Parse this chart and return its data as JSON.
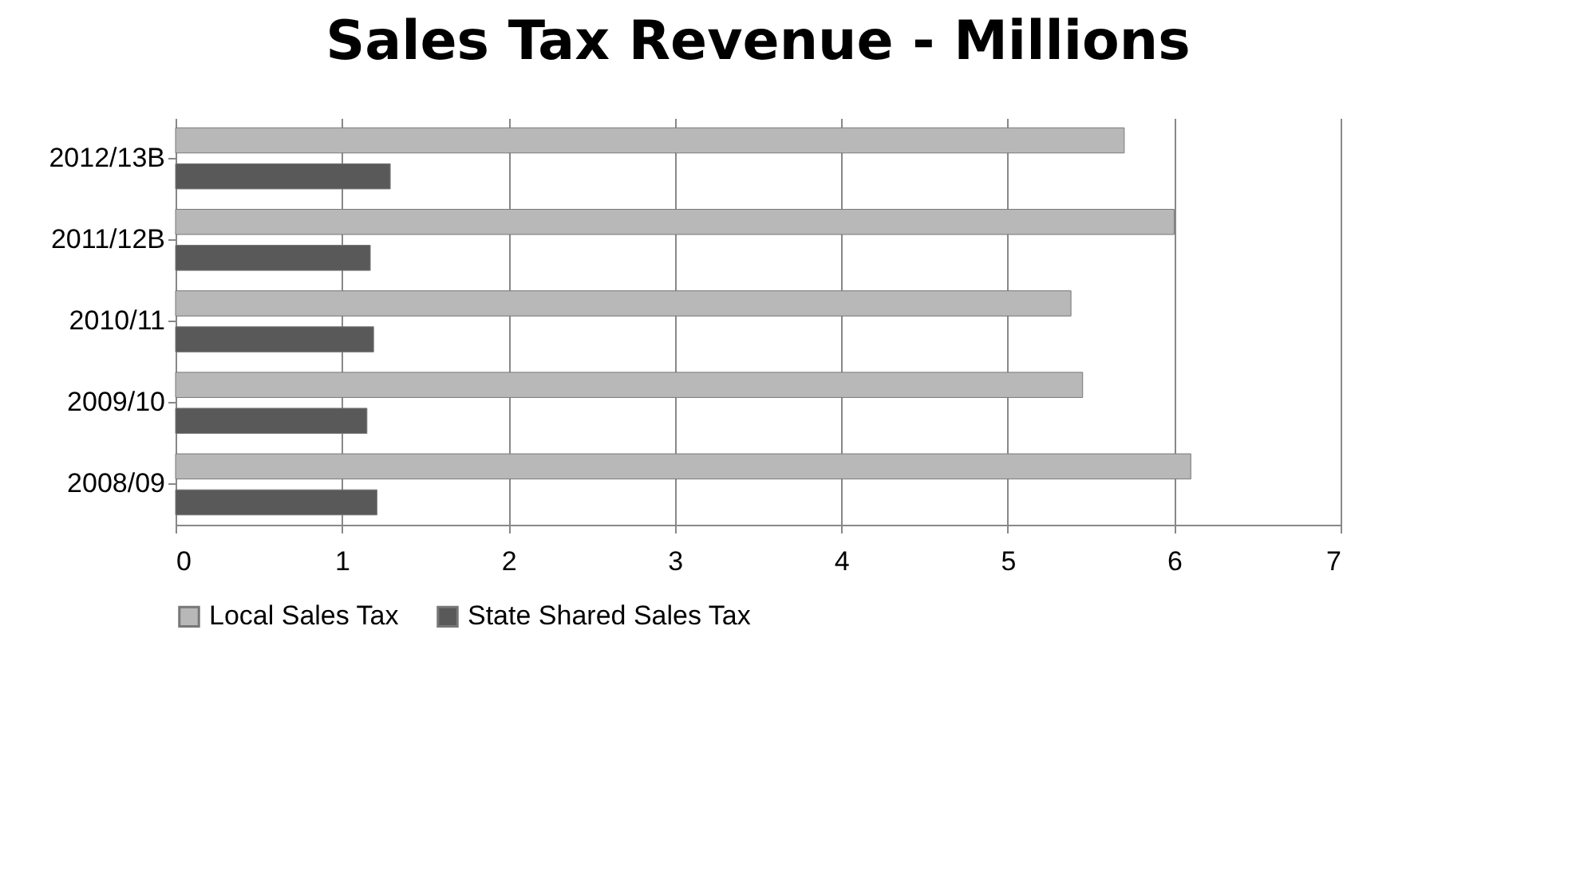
{
  "chart_data": {
    "type": "bar",
    "orientation": "horizontal",
    "title": "Sales Tax Revenue - Millions",
    "categories": [
      "2012/13B",
      "2011/12B",
      "2010/11",
      "2009/10",
      "2008/09"
    ],
    "series": [
      {
        "name": "Local Sales Tax",
        "color": "#b8b8b8",
        "values": [
          5.7,
          6.0,
          5.38,
          5.45,
          6.1
        ]
      },
      {
        "name": "State Shared Sales Tax",
        "color": "#595959",
        "values": [
          1.29,
          1.17,
          1.19,
          1.15,
          1.21
        ]
      }
    ],
    "xlim": [
      0,
      7
    ],
    "xticks": [
      0,
      1,
      2,
      3,
      4,
      5,
      6,
      7
    ],
    "grid": "x",
    "legend": "bottom"
  }
}
